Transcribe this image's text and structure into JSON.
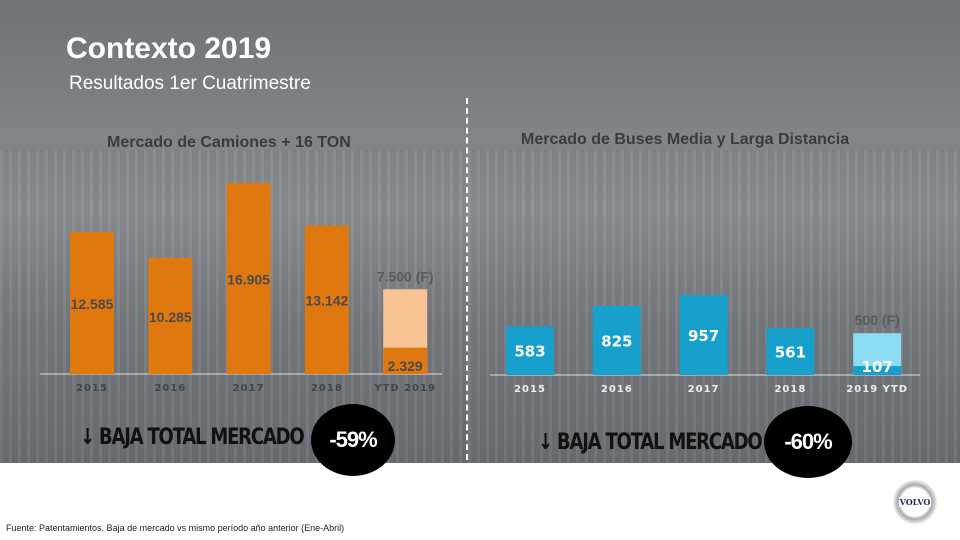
{
  "header": {
    "title": "Contexto 2019",
    "subtitle": "Resultados 1er Cuatrimestre"
  },
  "chart_data": [
    {
      "type": "bar",
      "title": "Mercado de Camiones + 16 TON",
      "categories": [
        "2015",
        "2016",
        "2017",
        "2018",
        "YTD 2019"
      ],
      "values": [
        12585,
        10285,
        16905,
        13142,
        2329
      ],
      "labels": [
        "12.585",
        "10.285",
        "16.905",
        "13.142",
        "2.329"
      ],
      "forecast": {
        "category": "YTD 2019",
        "value": 7500,
        "label": "7.500 (F)"
      },
      "colors": {
        "bar": "#e07810",
        "forecast": "#f8c494",
        "label": "#4a4a4a"
      }
    },
    {
      "type": "bar",
      "title": "Mercado de Buses Media y Larga Distancia",
      "categories": [
        "2015",
        "2016",
        "2017",
        "2018",
        "2019 YTD"
      ],
      "values": [
        583,
        825,
        957,
        561,
        107
      ],
      "labels": [
        "583",
        "825",
        "957",
        "561",
        "107"
      ],
      "forecast": {
        "category": "2019 YTD",
        "value": 500,
        "label": "500 (F)"
      },
      "colors": {
        "bar": "#18a0cc",
        "forecast": "#8cdcf4",
        "label": "#ffffff"
      }
    }
  ],
  "callouts": [
    {
      "text": "BAJA TOTAL MERCADO",
      "value": "-59%"
    },
    {
      "text": "BAJA TOTAL MERCADO",
      "value": "-60%"
    }
  ],
  "footer": "Fuente: Patentamientos. Baja de mercado vs mismo período año anterior (Ene-Abril)",
  "logo": "VOLVO"
}
